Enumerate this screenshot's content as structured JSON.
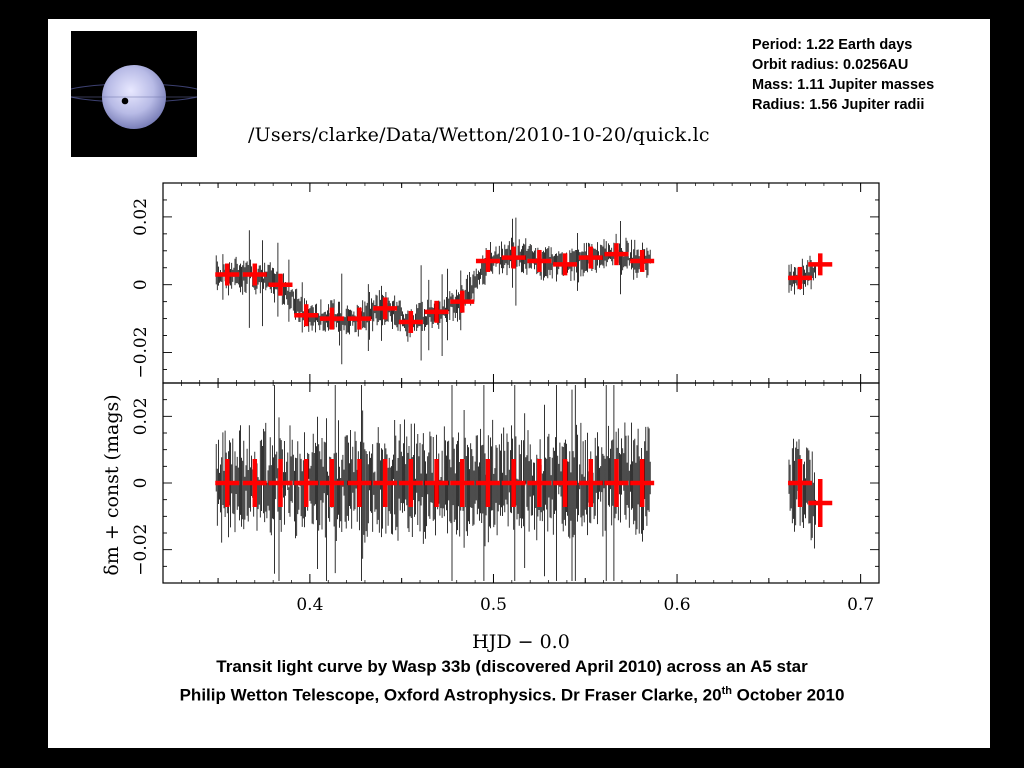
{
  "facts": {
    "period": "Period: 1.22 Earth days",
    "orbit": "Orbit radius: 0.0256AU",
    "mass": "Mass: 1.11 Jupiter masses",
    "radius": "Radius: 1.56 Jupiter radii"
  },
  "file_path": "/Users/clarke/Data/Wetton/2010-10-20/quick.lc",
  "caption": {
    "line1": "Transit light curve by Wasp 33b (discovered April 2010) across an A5 star",
    "line2_start": "Philip Wetton Telescope, Oxford Astrophysics. Dr Fraser Clarke, 20",
    "line2_sup": "th",
    "line2_end": " October 2010"
  },
  "colors": {
    "binned": "#ff0000",
    "raw": "#000000",
    "background": "#000000",
    "panel": "#ffffff"
  },
  "chart_data": [
    {
      "type": "scatter",
      "panel": "top",
      "xlabel": "HJD − 0.0",
      "ylabel": "δm + const (mags)",
      "xlim": [
        0.32,
        0.71
      ],
      "ylim": [
        -0.029,
        0.03
      ],
      "xticks": [
        "0.4",
        "0.5",
        "0.6",
        "0.7"
      ],
      "yticks": [
        "−0.02",
        "0",
        "0.02"
      ],
      "grid": false,
      "binned": {
        "x": [
          0.355,
          0.37,
          0.384,
          0.398,
          0.412,
          0.427,
          0.441,
          0.455,
          0.469,
          0.483,
          0.497,
          0.511,
          0.525,
          0.539,
          0.553,
          0.567,
          0.581,
          0.667,
          0.678
        ],
        "y": [
          0.003,
          0.003,
          0.0,
          -0.009,
          -0.01,
          -0.01,
          -0.007,
          -0.011,
          -0.008,
          -0.005,
          0.007,
          0.008,
          0.007,
          0.006,
          0.008,
          0.009,
          0.007,
          0.002,
          0.006
        ]
      }
    },
    {
      "type": "scatter",
      "panel": "bottom",
      "xlabel": "HJD − 0.0",
      "ylabel": "δm + const (mags)",
      "xlim": [
        0.32,
        0.71
      ],
      "ylim": [
        -0.03,
        0.03
      ],
      "xticks": [
        "0.4",
        "0.5",
        "0.6",
        "0.7"
      ],
      "yticks": [
        "−0.02",
        "0",
        "0.02"
      ],
      "grid": false,
      "binned": {
        "x": [
          0.355,
          0.37,
          0.384,
          0.398,
          0.412,
          0.427,
          0.441,
          0.455,
          0.469,
          0.483,
          0.497,
          0.511,
          0.525,
          0.539,
          0.553,
          0.567,
          0.581,
          0.667,
          0.678
        ],
        "y": [
          0.0,
          0.0,
          0.0,
          0.0,
          0.0,
          0.0,
          0.0,
          0.0,
          0.0,
          0.0,
          0.0,
          0.0,
          0.0,
          0.0,
          0.0,
          0.0,
          0.0,
          0.0,
          -0.006
        ]
      }
    }
  ]
}
